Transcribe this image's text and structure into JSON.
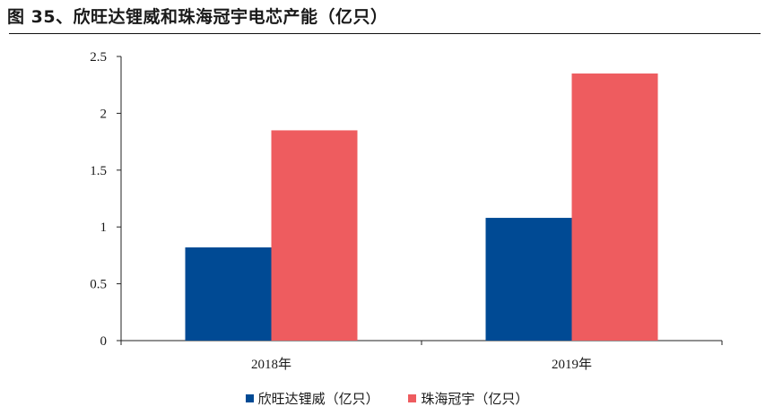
{
  "title": "图 35、欣旺达锂威和珠海冠宇电芯产能（亿只）",
  "chart_data": {
    "type": "bar",
    "categories": [
      "2018年",
      "2019年"
    ],
    "series": [
      {
        "name": "欣旺达锂威（亿只）",
        "values": [
          0.82,
          1.08
        ],
        "color": "#004A94"
      },
      {
        "name": "珠海冠宇（亿只）",
        "values": [
          1.85,
          2.35
        ],
        "color": "#EE5C5F"
      }
    ],
    "ylim": [
      0,
      2.5
    ],
    "yticks": [
      "0",
      "0.5",
      "1",
      "1.5",
      "2",
      "2.5"
    ],
    "legend_position": "bottom",
    "grid": false
  }
}
